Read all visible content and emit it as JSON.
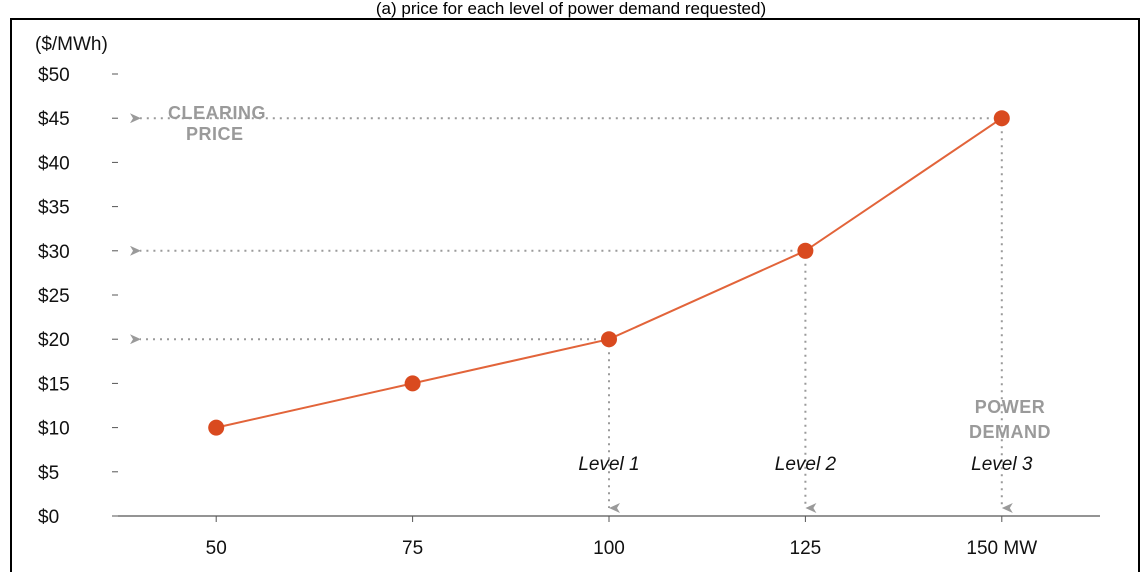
{
  "header": {
    "caption": "(a) price for each level of power demand requested)"
  },
  "colors": {
    "line": "#e2643a",
    "point": "#d94a1f",
    "guide": "#9a9a9a",
    "axis": "#555555"
  },
  "chart_data": {
    "type": "line",
    "ylabel": "($/MWh)",
    "x": [
      50,
      75,
      100,
      125,
      150
    ],
    "x_tick_labels": [
      "50",
      "75",
      "100",
      "125",
      "150 MW"
    ],
    "y_ticks": [
      0,
      5,
      10,
      15,
      20,
      25,
      30,
      35,
      40,
      45,
      50
    ],
    "y_tick_labels": [
      "$0",
      "$5",
      "$10",
      "$15",
      "$20",
      "$25",
      "$30",
      "$35",
      "$40",
      "$45",
      "$50"
    ],
    "xlim": [
      37.5,
      162.5
    ],
    "ylim": [
      0,
      50
    ],
    "series": [
      {
        "values": [
          10,
          15,
          20,
          30,
          45
        ]
      }
    ],
    "guides": [
      {
        "x": 100,
        "y": 20,
        "level": "Level 1"
      },
      {
        "x": 125,
        "y": 30,
        "level": "Level 2"
      },
      {
        "x": 150,
        "y": 45,
        "level": "Level 3"
      }
    ],
    "annotations": {
      "clearing_price": [
        "CLEARING",
        "PRICE"
      ],
      "power_demand": [
        "POWER",
        "DEMAND"
      ]
    }
  }
}
